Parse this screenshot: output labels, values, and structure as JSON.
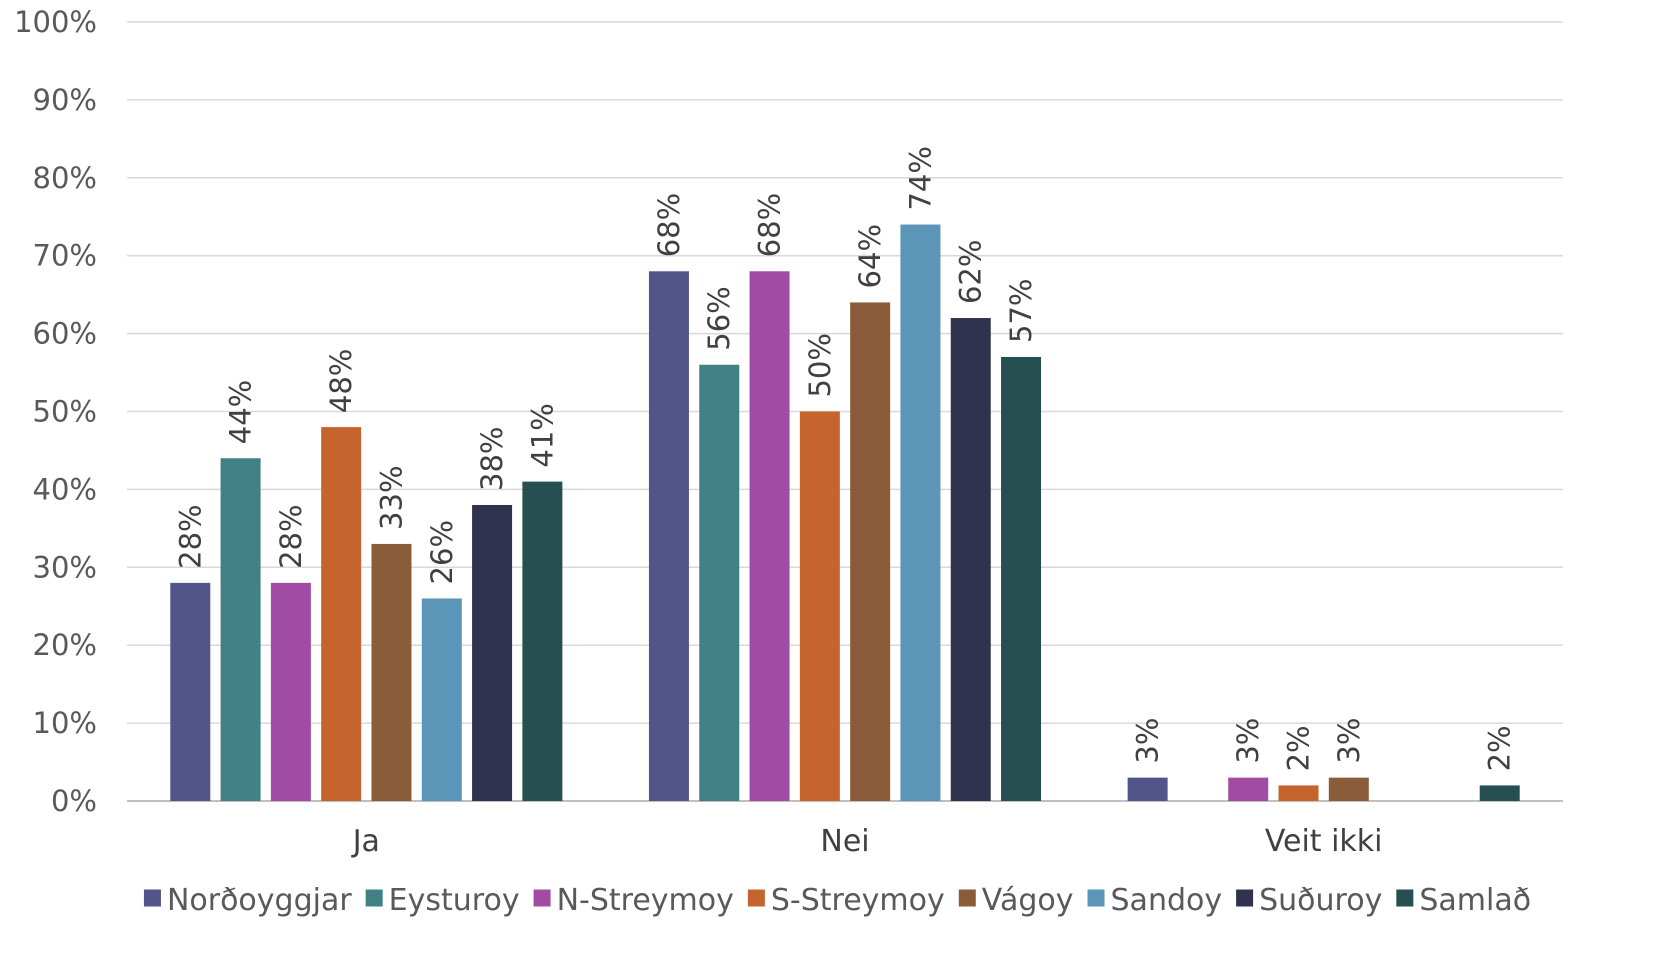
{
  "chart_data": {
    "type": "bar",
    "categories": [
      "Ja",
      "Nei",
      "Veit ikki"
    ],
    "series": [
      {
        "name": "Norðoyggjar",
        "color": "#51558a",
        "values": [
          28,
          68,
          3
        ]
      },
      {
        "name": "Eysturoy",
        "color": "#418085",
        "values": [
          44,
          56,
          null
        ]
      },
      {
        "name": "N-Streymoy",
        "color": "#a04ca4",
        "values": [
          28,
          68,
          3
        ]
      },
      {
        "name": "S-Streymoy",
        "color": "#c5642c",
        "values": [
          48,
          50,
          2
        ]
      },
      {
        "name": "Vágoy",
        "color": "#8a5c3a",
        "values": [
          33,
          64,
          3
        ]
      },
      {
        "name": "Sandoy",
        "color": "#5b95b8",
        "values": [
          26,
          74,
          null
        ]
      },
      {
        "name": "Suðuroy",
        "color": "#31324f",
        "values": [
          38,
          62,
          null
        ]
      },
      {
        "name": "Samlað",
        "color": "#264f52",
        "values": [
          41,
          57,
          2
        ]
      }
    ],
    "y_ticks": [
      "0%",
      "10%",
      "20%",
      "30%",
      "40%",
      "50%",
      "60%",
      "70%",
      "80%",
      "90%",
      "100%"
    ],
    "ylim": [
      0,
      100
    ],
    "value_suffix": "%",
    "grid": true,
    "legend_position": "bottom"
  }
}
